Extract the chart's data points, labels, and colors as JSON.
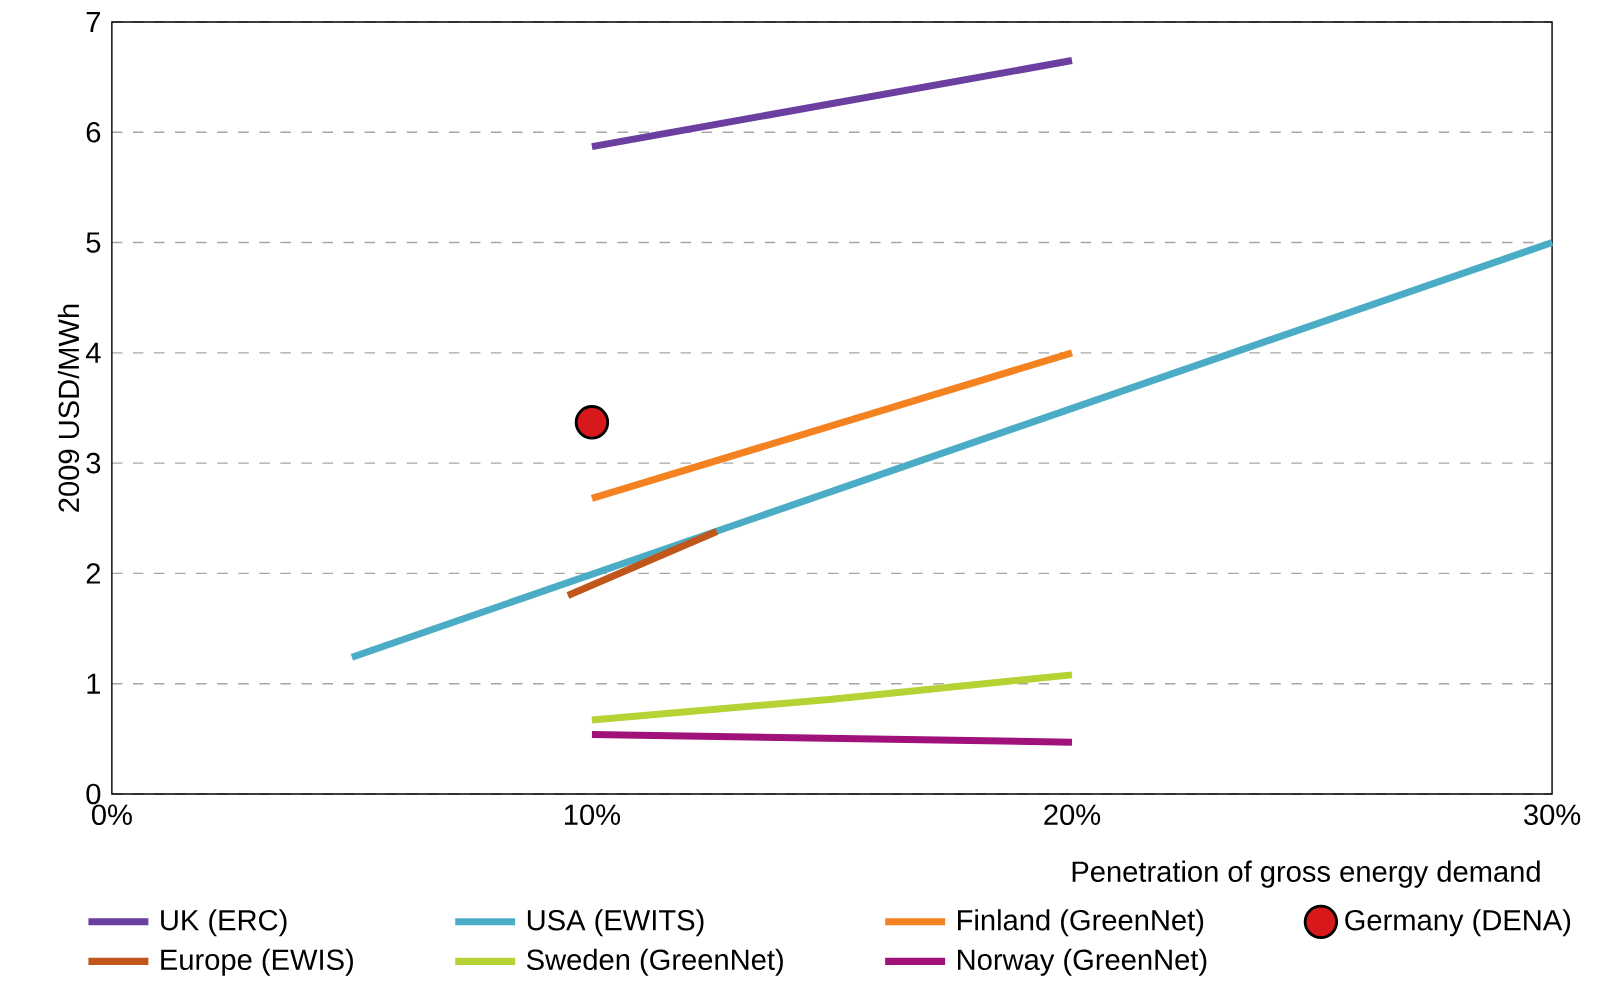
{
  "chart_data": {
    "type": "line",
    "xlabel": "Penetration of gross energy demand",
    "ylabel": "2009 USD/MWh",
    "xlim": [
      0,
      30
    ],
    "ylim": [
      0,
      7
    ],
    "xticks": [
      {
        "value": 0,
        "label": "0%"
      },
      {
        "value": 10,
        "label": "10%"
      },
      {
        "value": 20,
        "label": "20%"
      },
      {
        "value": 30,
        "label": "30%"
      }
    ],
    "yticks": [
      0,
      1,
      2,
      3,
      4,
      5,
      6,
      7
    ],
    "grid": "y",
    "legend": "bottom",
    "line_style": "solid",
    "series": [
      {
        "name": "UK (ERC)",
        "color": "#6b3fa0",
        "x": [
          10,
          20
        ],
        "values": [
          5.87,
          6.65
        ]
      },
      {
        "name": "USA (EWITS)",
        "color": "#4bacc6",
        "x": [
          5,
          30
        ],
        "values": [
          1.24,
          5.0
        ]
      },
      {
        "name": "Finland (GreenNet)",
        "color": "#f58220",
        "x": [
          10,
          20
        ],
        "values": [
          2.68,
          4.0
        ]
      },
      {
        "name": "Germany (DENA)",
        "color": "#d7191c",
        "type": "scatter",
        "x": [
          10
        ],
        "values": [
          3.37
        ]
      },
      {
        "name": "Europe (EWIS)",
        "color": "#c0561a",
        "x": [
          9.5,
          12.6
        ],
        "values": [
          1.8,
          2.38
        ]
      },
      {
        "name": "Sweden (GreenNet)",
        "color": "#b5d334",
        "x": [
          10,
          15,
          20
        ],
        "values": [
          0.67,
          0.86,
          1.08
        ]
      },
      {
        "name": "Norway (GreenNet)",
        "color": "#a0117a",
        "x": [
          10,
          20
        ],
        "values": [
          0.54,
          0.47
        ]
      }
    ]
  }
}
